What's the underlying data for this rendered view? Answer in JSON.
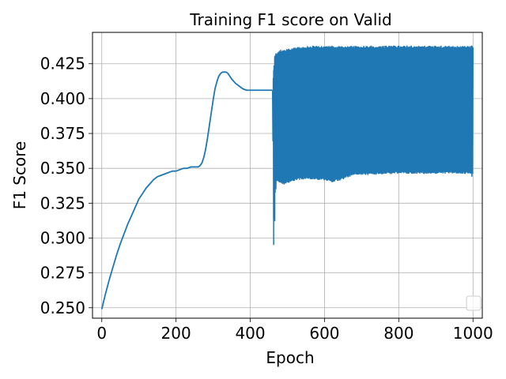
{
  "chart_data": {
    "type": "line",
    "title": "Training F1 score on Valid",
    "xlabel": "Epoch",
    "ylabel": "F1 Score",
    "xlim": [
      -25,
      1025
    ],
    "ylim": [
      0.2425,
      0.4475
    ],
    "xticks": [
      0,
      200,
      400,
      600,
      800,
      1000
    ],
    "xtick_labels": [
      "0",
      "200",
      "400",
      "600",
      "800",
      "1000"
    ],
    "yticks": [
      0.25,
      0.275,
      0.3,
      0.325,
      0.35,
      0.375,
      0.4,
      0.425
    ],
    "ytick_labels": [
      "0.250",
      "0.275",
      "0.300",
      "0.325",
      "0.350",
      "0.375",
      "0.400",
      "0.425"
    ],
    "grid": true,
    "legend": {
      "placement": "lower-right",
      "entries": []
    },
    "colors": {
      "series": "#1f77b4",
      "grid": "#b0b0b0"
    },
    "series": [
      {
        "color": "#1f77b4",
        "x": [
          0,
          10,
          20,
          30,
          40,
          50,
          60,
          70,
          80,
          90,
          100,
          110,
          120,
          130,
          140,
          150,
          160,
          170,
          180,
          190,
          200,
          210,
          220,
          230,
          240,
          250,
          260,
          265,
          270,
          275,
          280,
          285,
          290,
          295,
          300,
          305,
          310,
          315,
          320,
          325,
          330,
          335,
          340,
          345,
          350,
          360,
          370,
          380,
          390,
          400,
          410,
          420,
          430,
          440,
          450,
          455,
          458,
          460
        ],
        "y": [
          0.249,
          0.26,
          0.27,
          0.279,
          0.288,
          0.296,
          0.303,
          0.31,
          0.316,
          0.322,
          0.328,
          0.332,
          0.336,
          0.339,
          0.342,
          0.344,
          0.345,
          0.346,
          0.347,
          0.348,
          0.348,
          0.349,
          0.35,
          0.35,
          0.351,
          0.351,
          0.351,
          0.352,
          0.354,
          0.358,
          0.364,
          0.372,
          0.381,
          0.39,
          0.399,
          0.407,
          0.412,
          0.416,
          0.418,
          0.419,
          0.419,
          0.419,
          0.418,
          0.416,
          0.414,
          0.411,
          0.409,
          0.407,
          0.406,
          0.406,
          0.406,
          0.406,
          0.406,
          0.406,
          0.406,
          0.406,
          0.406,
          0.406
        ]
      }
    ],
    "oscillation": {
      "x_start": 460,
      "x_end": 1000,
      "upper_x": [
        460,
        465,
        470,
        480,
        500,
        520,
        540,
        560,
        600,
        650,
        700,
        800,
        900,
        1000
      ],
      "upper_y": [
        0.406,
        0.43,
        0.433,
        0.435,
        0.436,
        0.437,
        0.437,
        0.438,
        0.438,
        0.438,
        0.438,
        0.438,
        0.438,
        0.438
      ],
      "lower_x": [
        460,
        462,
        464,
        466,
        470,
        480,
        490,
        500,
        520,
        540,
        560,
        600,
        620,
        640,
        660,
        680,
        700,
        800,
        900,
        1000
      ],
      "lower_y": [
        0.406,
        0.33,
        0.295,
        0.33,
        0.34,
        0.339,
        0.338,
        0.339,
        0.341,
        0.342,
        0.342,
        0.341,
        0.34,
        0.341,
        0.343,
        0.345,
        0.345,
        0.346,
        0.346,
        0.346
      ],
      "spikes": [
        {
          "x": 463,
          "y": 0.295
        },
        {
          "x": 466,
          "y": 0.312
        },
        {
          "x": 469,
          "y": 0.335
        },
        {
          "x": 997,
          "y": 0.344
        }
      ]
    }
  }
}
